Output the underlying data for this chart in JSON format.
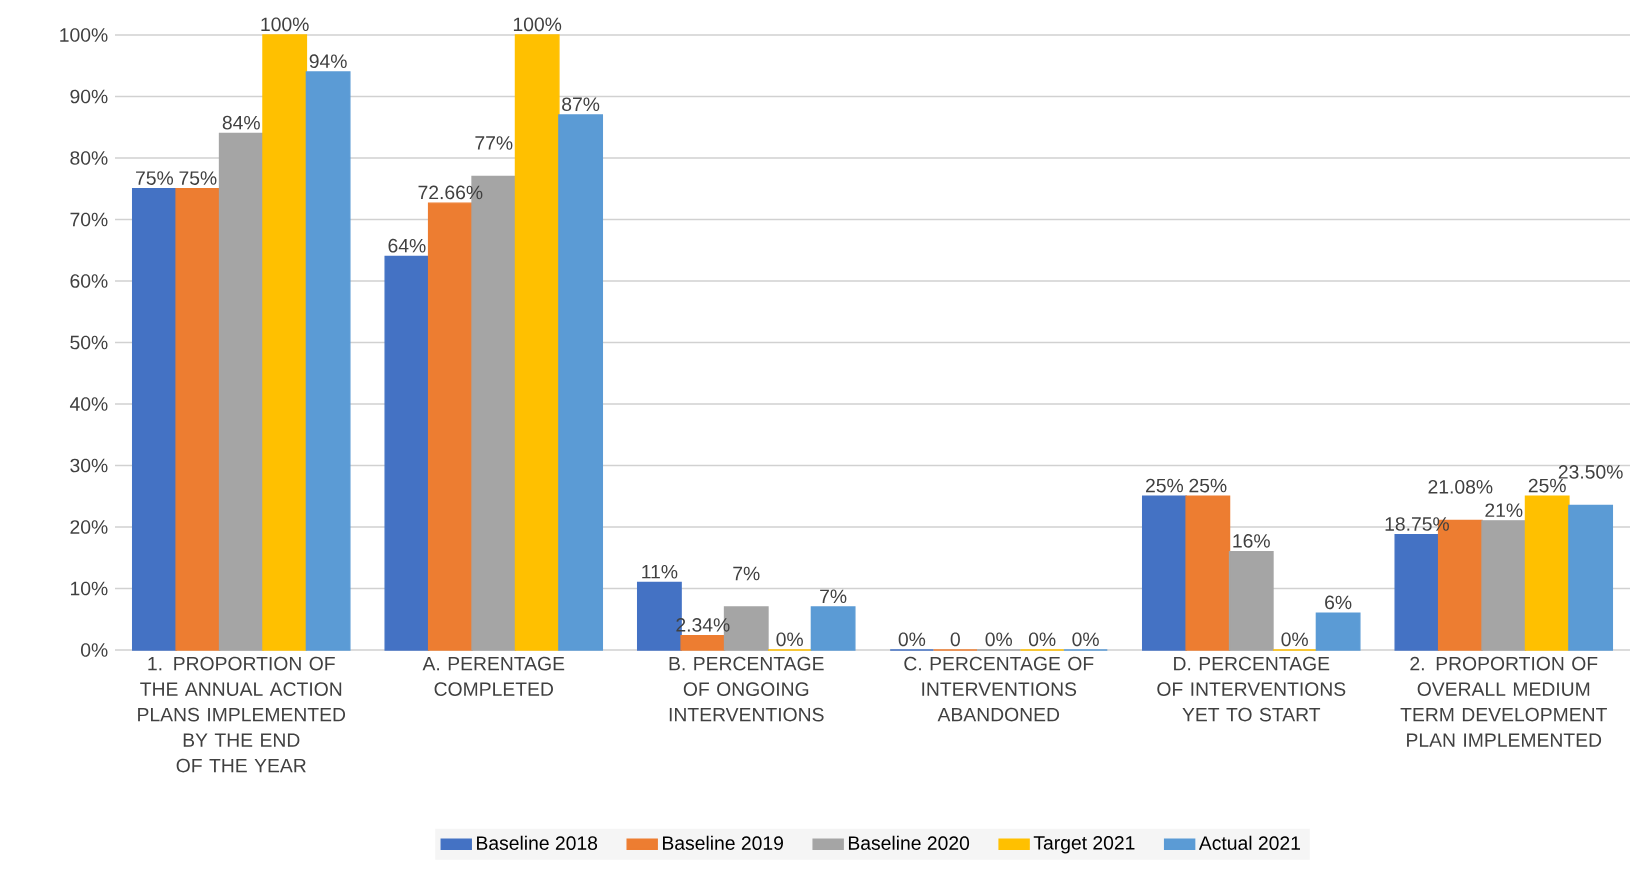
{
  "chart_data": {
    "type": "bar",
    "categories": [
      "1. PROPORTION OF THE ANNUAL ACTION PLANS IMPLEMENTED BY THE END OF THE YEAR",
      "A. PERENTAGE COMPLETED",
      "B. PERCENTAGE OF ONGOING INTERVENTIONS",
      "C. PERCENTAGE OF INTERVENTIONS ABANDONED",
      "D. PERCENTAGE OF INTERVENTIONS YET TO START",
      "2. PROPORTION OF OVERALL MEDIUM TERM DEVELOPMENT PLAN IMPLEMENTED"
    ],
    "series": [
      {
        "name": "Baseline 2018",
        "color": "#4472c4",
        "values": [
          75,
          64,
          11,
          0,
          25,
          18.75
        ],
        "value_labels": [
          "75%",
          "64%",
          "11%",
          "0%",
          "25%",
          "18.75%"
        ]
      },
      {
        "name": "Baseline 2019",
        "color": "#ed7d31",
        "values": [
          75,
          72.66,
          2.34,
          0,
          25,
          21.08
        ],
        "value_labels": [
          "75%",
          "72.66%",
          "2.34%",
          "0",
          "25%",
          "21.08%"
        ]
      },
      {
        "name": "Baseline 2020",
        "color": "#a5a5a5",
        "values": [
          84,
          77,
          7,
          0,
          16,
          21
        ],
        "value_labels": [
          "84%",
          "77%",
          "7%",
          "0%",
          "16%",
          "21%"
        ]
      },
      {
        "name": "Target 2021",
        "color": "#ffc000",
        "values": [
          100,
          100,
          0,
          0,
          0,
          25
        ],
        "value_labels": [
          "100%",
          "100%",
          "0%",
          "0%",
          "0%",
          "25%"
        ]
      },
      {
        "name": "Actual 2021",
        "color": "#5b9bd5",
        "values": [
          94,
          87,
          7,
          0,
          6,
          23.5
        ],
        "value_labels": [
          "94%",
          "87%",
          "7%",
          "0%",
          "6%",
          "23.50%"
        ]
      }
    ],
    "ylim": [
      0,
      100
    ],
    "yticks": [
      {
        "value": 0,
        "label": "0%"
      },
      {
        "value": 10,
        "label": "10%"
      },
      {
        "value": 20,
        "label": "20%"
      },
      {
        "value": 30,
        "label": "30%"
      },
      {
        "value": 40,
        "label": "40%"
      },
      {
        "value": 50,
        "label": "50%"
      },
      {
        "value": 60,
        "label": "60%"
      },
      {
        "value": 70,
        "label": "70%"
      },
      {
        "value": 80,
        "label": "80%"
      },
      {
        "value": 90,
        "label": "90%"
      },
      {
        "value": 100,
        "label": "100%"
      }
    ],
    "grid": "y",
    "legend": "bottom"
  }
}
